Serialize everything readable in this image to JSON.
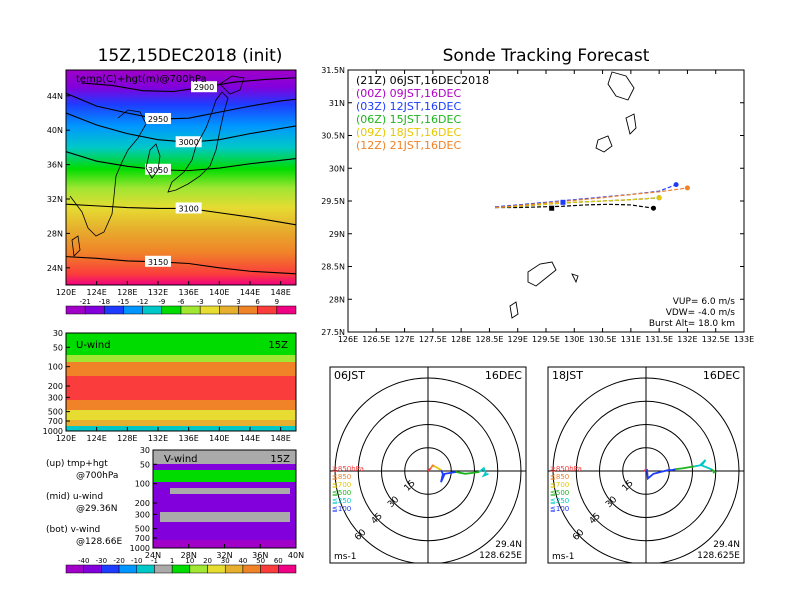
{
  "chart_data": [
    {
      "type": "heatmap",
      "title": "15Z,15DEC2018 (init)",
      "panel_label": "temp(C)+hgt(m)@700hPa",
      "x_ticks": [
        "120E",
        "124E",
        "128E",
        "132E",
        "136E",
        "140E",
        "144E",
        "148E"
      ],
      "y_ticks": [
        "24N",
        "28N",
        "32N",
        "36N",
        "40N",
        "44N"
      ],
      "xlim": [
        120,
        150
      ],
      "ylim": [
        22,
        47
      ],
      "contours": [
        {
          "label": "2900",
          "values_lon": [
            122,
            126,
            130,
            134,
            138,
            142,
            146,
            150
          ],
          "values_lat": [
            45.5,
            45.2,
            44.6,
            44.5,
            45.0,
            45.6,
            45.9,
            46.1
          ]
        },
        {
          "label": "2950",
          "values_lon": [
            120,
            124,
            128,
            132,
            136,
            140,
            144,
            148,
            150
          ],
          "values_lat": [
            44.3,
            42.8,
            42.0,
            41.3,
            41.4,
            42.1,
            42.8,
            43.4,
            43.6
          ]
        },
        {
          "label": "3000",
          "values_lon": [
            120,
            124,
            128,
            132,
            136,
            140,
            144,
            148,
            150
          ],
          "values_lat": [
            42.0,
            40.6,
            39.6,
            38.9,
            38.6,
            38.9,
            39.6,
            40.2,
            40.5
          ]
        },
        {
          "label": "3050",
          "values_lon": [
            120,
            124,
            128,
            132,
            136,
            140,
            144,
            148,
            150
          ],
          "values_lat": [
            37.5,
            36.4,
            35.8,
            35.4,
            35.3,
            35.6,
            36.1,
            36.5,
            36.7
          ]
        },
        {
          "label": "3100",
          "values_lon": [
            120,
            124,
            128,
            132,
            136,
            140,
            144,
            148,
            150
          ],
          "values_lat": [
            31.4,
            31.2,
            31.0,
            30.9,
            30.9,
            30.4,
            29.9,
            29.3,
            29.0
          ]
        },
        {
          "label": "3150",
          "values_lon": [
            120,
            124,
            128,
            132,
            136,
            140,
            144,
            148,
            150
          ],
          "values_lat": [
            25.3,
            25.1,
            24.8,
            24.7,
            24.5,
            24.0,
            23.6,
            23.4,
            23.3
          ]
        }
      ],
      "colorbar_labels": [
        "-21",
        "-18",
        "-15",
        "-12",
        "-9",
        "-6",
        "-3",
        "0",
        "3",
        "6",
        "9"
      ],
      "colors": [
        "#a000c8",
        "#8200dc",
        "#1e3cff",
        "#0096ff",
        "#00c8c8",
        "#00dc00",
        "#a0e632",
        "#e6dc32",
        "#e6af2d",
        "#f08228",
        "#fa3c3c",
        "#f00082"
      ]
    },
    {
      "type": "heatmap",
      "panel_label": "U-wind",
      "time_label": "15Z",
      "x_ticks": [
        "120E",
        "124E",
        "128E",
        "132E",
        "136E",
        "140E",
        "144E",
        "148E"
      ],
      "y_ticks": [
        "30",
        "50",
        "100",
        "200",
        "300",
        "500",
        "700",
        "1000"
      ],
      "xlim": [
        120,
        150
      ]
    },
    {
      "type": "heatmap",
      "panel_label": "V-wind",
      "time_label": "15Z",
      "x_ticks": [
        "24N",
        "28N",
        "32N",
        "36N",
        "40N"
      ],
      "y_ticks": [
        "30",
        "50",
        "100",
        "200",
        "300",
        "500",
        "700",
        "1000"
      ],
      "colorbar_labels": [
        "-40",
        "-30",
        "-20",
        "-10",
        "-1",
        "1",
        "10",
        "20",
        "30",
        "40",
        "50",
        "60"
      ],
      "colors": [
        "#a000c8",
        "#8200dc",
        "#1e3cff",
        "#0096ff",
        "#00c8c8",
        "#aaaaaa",
        "#00dc00",
        "#a0e632",
        "#e6dc32",
        "#e6af2d",
        "#f08228",
        "#fa3c3c",
        "#f00082"
      ]
    },
    {
      "type": "line",
      "title": "Sonde Tracking Forecast",
      "x_ticks": [
        "126E",
        "126.5E",
        "127E",
        "127.5E",
        "128E",
        "128.5E",
        "129E",
        "129.5E",
        "130E",
        "130.5E",
        "131E",
        "131.5E",
        "132E",
        "132.5E",
        "133E"
      ],
      "y_ticks": [
        "27.5N",
        "28N",
        "28.5N",
        "29N",
        "29.5N",
        "30N",
        "30.5N",
        "31N",
        "31.5N"
      ],
      "xlim": [
        126,
        133
      ],
      "ylim": [
        27.5,
        31.5
      ],
      "series": [
        {
          "name": "(21Z)  06JST,16DEC2018",
          "color": "#000000",
          "x": [
            128.6,
            129.0,
            129.4,
            129.8,
            130.2,
            130.6,
            131.0,
            131.4
          ],
          "y": [
            29.4,
            29.4,
            29.41,
            29.42,
            29.44,
            29.45,
            29.44,
            29.39
          ]
        },
        {
          "name": "(00Z)  09JST,16DEC",
          "color": "#b000c8",
          "x": [
            128.6,
            129.0,
            129.5,
            130.0,
            130.5,
            131.0,
            131.5
          ],
          "y": [
            29.4,
            29.42,
            29.45,
            29.48,
            29.5,
            29.52,
            29.55
          ]
        },
        {
          "name": "(03Z)  12JST,16DEC",
          "color": "#1e3cff",
          "x": [
            128.6,
            129.0,
            129.5,
            130.0,
            130.5,
            131.0,
            131.5,
            131.8
          ],
          "y": [
            29.41,
            29.44,
            29.48,
            29.52,
            29.56,
            29.6,
            29.65,
            29.75
          ]
        },
        {
          "name": "(06Z)  15JST,16DEC",
          "color": "#1eb41e",
          "x": [
            128.6,
            129.0,
            129.5,
            130.0,
            130.5,
            131.0,
            131.5
          ],
          "y": [
            29.4,
            29.42,
            29.45,
            29.48,
            29.5,
            29.52,
            29.55
          ]
        },
        {
          "name": "(09Z)  18JST,16DEC",
          "color": "#e6c800",
          "x": [
            128.6,
            129.0,
            129.5,
            130.0,
            130.5,
            131.0,
            131.5
          ],
          "y": [
            29.4,
            29.42,
            29.45,
            29.48,
            29.5,
            29.52,
            29.55
          ]
        },
        {
          "name": "(12Z)  21JST,16DEC",
          "color": "#f08228",
          "x": [
            128.6,
            129.0,
            129.5,
            130.0,
            130.5,
            131.0,
            131.5,
            132.0
          ],
          "y": [
            29.4,
            29.43,
            29.47,
            29.51,
            29.55,
            29.6,
            29.64,
            29.7
          ]
        }
      ],
      "markers": [
        {
          "x": 129.8,
          "y": 29.48,
          "color": "#1e3cff"
        },
        {
          "x": 129.6,
          "y": 29.39,
          "color": "#000000"
        }
      ],
      "annotations": [
        "VUP= 6.0 m/s",
        "VDW= -4.0 m/s",
        "Burst Alt= 18.0 km"
      ]
    },
    {
      "type": "line",
      "panel_label": "06JST",
      "date_label": "16DEC",
      "unit_label": "ms-1",
      "location": [
        "29.4N",
        "128.625E"
      ],
      "ring_labels": [
        "15",
        "30",
        "45",
        "60"
      ],
      "level_labels": [
        {
          "text": "≧850hPa",
          "color": "#fa3c3c"
        },
        {
          "text": "≦850",
          "color": "#f08228"
        },
        {
          "text": "≦700",
          "color": "#e6c800"
        },
        {
          "text": "≦500",
          "color": "#1eb41e"
        },
        {
          "text": "≦250",
          "color": "#00c8c8"
        },
        {
          "text": "≦100",
          "color": "#1e3cff"
        }
      ],
      "segments": [
        {
          "color": "#fa3c3c",
          "u": [
            0,
            1,
            3
          ],
          "v": [
            0,
            1,
            3
          ]
        },
        {
          "color": "#f08228",
          "u": [
            3,
            5,
            7
          ],
          "v": [
            3,
            6,
            5
          ]
        },
        {
          "color": "#e6c800",
          "u": [
            7,
            9,
            14
          ],
          "v": [
            5,
            4,
            1
          ]
        },
        {
          "color": "#1e3cff",
          "u": [
            14,
            16,
            14,
            18,
            24,
            30
          ],
          "v": [
            1,
            -3,
            -12,
            -3,
            -2,
            -1
          ]
        },
        {
          "color": "#1eb41e",
          "u": [
            30,
            40,
            48,
            55
          ],
          "v": [
            -1,
            -3,
            -2,
            -1
          ]
        },
        {
          "color": "#00c8c8",
          "u": [
            55,
            60,
            62,
            60,
            65
          ],
          "v": [
            -1,
            3,
            -2,
            -5,
            -3
          ]
        }
      ]
    },
    {
      "type": "line",
      "panel_label": "18JST",
      "date_label": "16DEC",
      "unit_label": "ms-1",
      "location": [
        "29.4N",
        "128.625E"
      ],
      "ring_labels": [
        "15",
        "30",
        "45",
        "60"
      ],
      "level_labels": [
        {
          "text": "≧850hPa",
          "color": "#fa3c3c"
        },
        {
          "text": "≦850",
          "color": "#f08228"
        },
        {
          "text": "≦700",
          "color": "#e6c800"
        },
        {
          "text": "≦500",
          "color": "#1eb41e"
        },
        {
          "text": "≦250",
          "color": "#00c8c8"
        },
        {
          "text": "≦100",
          "color": "#1e3cff"
        }
      ],
      "segments": [
        {
          "color": "#fa3c3c",
          "u": [
            -2,
            -1,
            1
          ],
          "v": [
            0,
            1,
            2
          ]
        },
        {
          "color": "#1e3cff",
          "u": [
            1,
            2,
            8,
            12,
            16,
            20,
            24,
            28,
            32
          ],
          "v": [
            2,
            -8,
            -3,
            -2,
            -1,
            0,
            1,
            1,
            2
          ]
        },
        {
          "color": "#1eb41e",
          "u": [
            32,
            40,
            46,
            52
          ],
          "v": [
            2,
            3,
            4,
            5
          ]
        },
        {
          "color": "#00c8c8",
          "u": [
            52,
            58,
            64,
            60,
            70
          ],
          "v": [
            5,
            6,
            12,
            6,
            2
          ]
        },
        {
          "color": "#1eb41e",
          "u": [
            70,
            74,
            72
          ],
          "v": [
            2,
            -1,
            -2
          ]
        }
      ]
    }
  ],
  "side_text": [
    {
      "a": "(up)  tmp+hgt",
      "b": "@700hPa"
    },
    {
      "a": "(mid)  u-wind",
      "b": "@29.36N"
    },
    {
      "a": "(bot)  v-wind",
      "b": "@128.66E"
    }
  ]
}
